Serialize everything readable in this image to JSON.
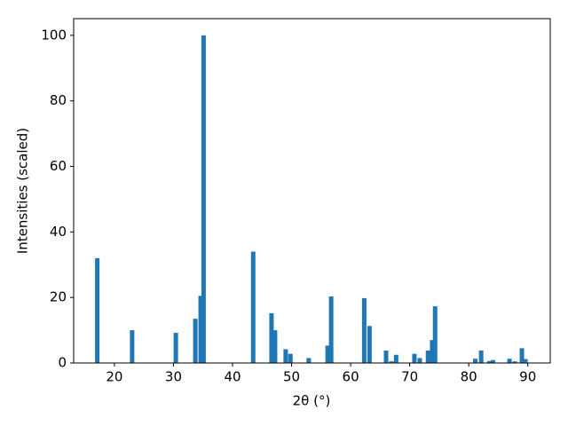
{
  "chart_data": {
    "type": "bar",
    "x": [
      17.1,
      23.0,
      30.4,
      33.7,
      34.6,
      35.1,
      43.5,
      46.6,
      47.2,
      49.0,
      49.8,
      52.9,
      56.1,
      56.7,
      62.3,
      63.2,
      66.0,
      66.9,
      67.7,
      70.8,
      71.7,
      73.1,
      73.8,
      74.3,
      81.1,
      82.1,
      83.5,
      84.1,
      86.9,
      87.8,
      89.0,
      89.6
    ],
    "values": [
      32,
      10,
      9.2,
      13.5,
      20.5,
      100,
      34,
      15.2,
      10,
      4.2,
      2.8,
      1.5,
      5.3,
      20.3,
      19.8,
      11.3,
      3.8,
      0.5,
      2.5,
      2.8,
      1.5,
      3.8,
      7,
      17.3,
      1.3,
      3.8,
      0.6,
      0.9,
      1.3,
      0.5,
      4.5,
      1.2
    ],
    "color": "#1f77b4",
    "xlabel": "2θ (°)",
    "ylabel": "Intensities (scaled)",
    "xlim": [
      13.1,
      93.8
    ],
    "ylim": [
      0,
      105.1
    ],
    "xticks": [
      20,
      30,
      40,
      50,
      60,
      70,
      80,
      90
    ],
    "yticks": [
      0,
      20,
      40,
      60,
      80,
      100
    ],
    "grid": false
  }
}
